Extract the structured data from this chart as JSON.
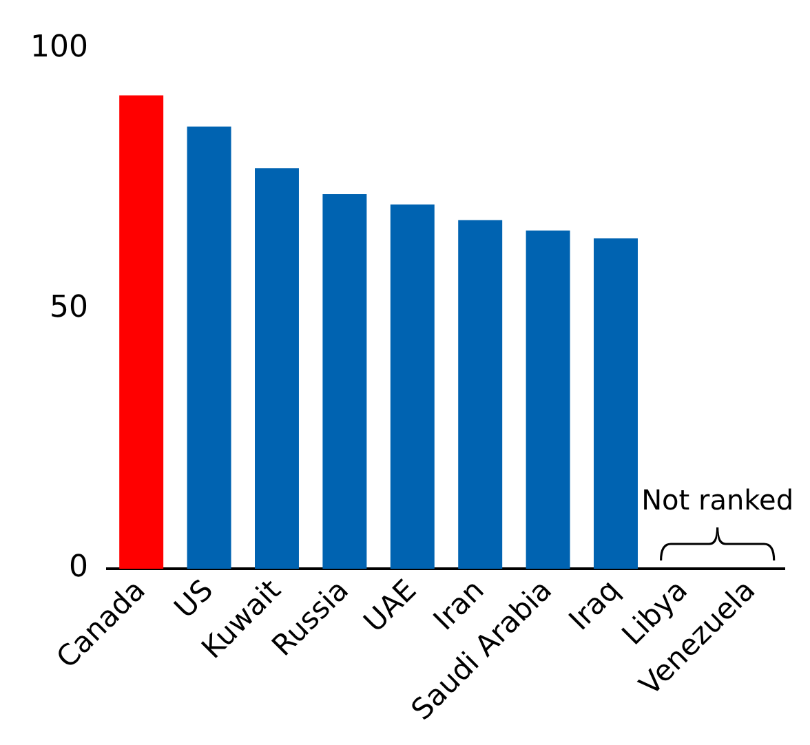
{
  "chart_data": {
    "type": "bar",
    "categories": [
      "Canada",
      "US",
      "Kuwait",
      "Russia",
      "UAE",
      "Iran",
      "Saudi Arabia",
      "Iraq",
      "Libya",
      "Venezuela"
    ],
    "values": [
      91,
      85,
      77,
      72,
      70,
      67,
      65,
      63.5,
      null,
      null
    ],
    "colors": [
      "#ff0000",
      "#0063b1",
      "#0063b1",
      "#0063b1",
      "#0063b1",
      "#0063b1",
      "#0063b1",
      "#0063b1",
      "#0063b1",
      "#0063b1"
    ],
    "ylim": [
      0,
      100
    ],
    "yticks": [
      0,
      50,
      100
    ],
    "grid": false,
    "legend": false,
    "annotations": [
      "Not ranked"
    ]
  }
}
